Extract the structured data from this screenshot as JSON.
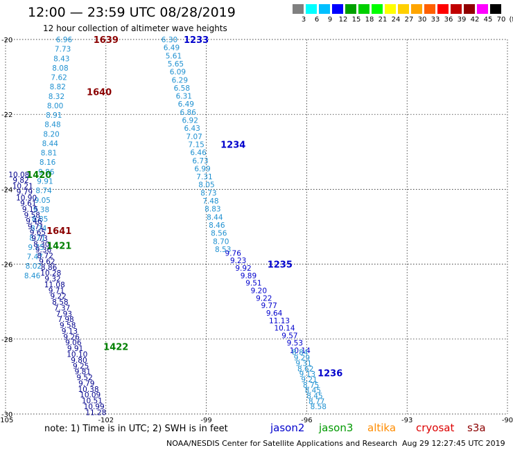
{
  "header": {
    "title": "12:00 — 23:59 UTC 08/28/2019",
    "subtitle": "12 hour collection of altimeter wave heights"
  },
  "color_scale": {
    "labels": [
      "3",
      "6",
      "9",
      "12",
      "15",
      "18",
      "21",
      "24",
      "27",
      "30",
      "33",
      "36",
      "39",
      "42",
      "45",
      "70",
      "(ft)"
    ],
    "colors": [
      "#808080",
      "#00ffff",
      "#00bfff",
      "#0000ff",
      "#00a000",
      "#00d000",
      "#00ff00",
      "#ffff00",
      "#ffd000",
      "#ffa500",
      "#ff6000",
      "#ff0000",
      "#c00000",
      "#900000",
      "#ff00ff",
      "#000000"
    ]
  },
  "footer": {
    "note": "note:  1) Time is in UTC;  2) SWH is in feet",
    "satellites": [
      {
        "name": "jason2",
        "color": "#0000cc"
      },
      {
        "name": "jason3",
        "color": "#009900"
      },
      {
        "name": "altika",
        "color": "#ff8c00"
      },
      {
        "name": "cryosat",
        "color": "#dd0000"
      },
      {
        "name": "s3a",
        "color": "#8b0000"
      }
    ],
    "credit": "NOAA/NESDIS Center for Satellite Applications and Research",
    "timestamp": "Aug 29 12:27:45 UTC 2019"
  },
  "chart_data": {
    "type": "scatter",
    "xlim": [
      -105,
      -90
    ],
    "ylim": [
      -30,
      -20
    ],
    "x_ticks": [
      "-105",
      "-102",
      "-99",
      "-96",
      "-93",
      "-90"
    ],
    "y_ticks": [
      "-20",
      "-22",
      "-24",
      "-26",
      "-28",
      "-30"
    ],
    "grid": true,
    "tracks": [
      {
        "id": "t1",
        "color": "#1e90d0",
        "start": [
          -103.25,
          -20.0
        ],
        "end": [
          -104.2,
          -26.3
        ],
        "values": [
          "6.96",
          "7.73",
          "8.43",
          "8.08",
          "7.62",
          "8.82",
          "8.32",
          "8.00",
          "8.91",
          "8.48",
          "8.20",
          "8.44",
          "8.81",
          "8.16",
          "9.86",
          "9.91",
          "8.74",
          "9.05",
          "9.38",
          "8.85",
          "8.74",
          "8.71",
          "9.75",
          "7.47",
          "8.02",
          "8.46"
        ]
      },
      {
        "id": "t2",
        "color": "#00008b",
        "start": [
          -104.6,
          -23.6
        ],
        "end": [
          -102.3,
          -29.95
        ],
        "values": [
          "10.08",
          "9.82",
          "10.21",
          "9.79",
          "10.90",
          "9.61",
          "9.15",
          "9.58",
          "9.46",
          "9.71",
          "9.65",
          "9.73",
          "8.30",
          "9.36",
          "8.72",
          "9.62",
          "8.86",
          "10.28",
          "9.32",
          "11.08",
          "9.71",
          "9.22",
          "8.58",
          "7.37",
          "7.93",
          "7.98",
          "9.58",
          "9.13",
          "9.26",
          "9.06",
          "9.91",
          "10.10",
          "9.80",
          "9.25",
          "9.81",
          "9.52",
          "9.79",
          "10.38",
          "10.09",
          "10.51",
          "10.99",
          "11.28"
        ]
      },
      {
        "id": "t3",
        "color": "#1e90d0",
        "start": [
          -100.1,
          -20.0
        ],
        "end": [
          -98.5,
          -25.6
        ],
        "values": [
          "6.30",
          "6.49",
          "5.61",
          "5.65",
          "6.09",
          "6.29",
          "6.58",
          "6.31",
          "6.49",
          "6.86",
          "6.92",
          "6.43",
          "7.07",
          "7.15",
          "6.46",
          "6.73",
          "6.99",
          "7.31",
          "8.05",
          "8.73",
          "7.48",
          "8.83",
          "8.44",
          "8.46",
          "8.56",
          "8.70",
          "8.53"
        ]
      },
      {
        "id": "t4",
        "color": "#0000cc",
        "start": [
          -98.2,
          -25.7
        ],
        "end": [
          -96.2,
          -28.3
        ],
        "values": [
          "9.76",
          "9.23",
          "9.92",
          "9.89",
          "9.51",
          "9.20",
          "9.22",
          "9.77",
          "9.64",
          "11.13",
          "10.14",
          "9.57",
          "9.53",
          "10.14"
        ]
      },
      {
        "id": "t5",
        "color": "#1e90d0",
        "start": [
          -96.2,
          -28.35
        ],
        "end": [
          -95.65,
          -29.8
        ],
        "values": [
          "8.84",
          "9.29",
          "9.31",
          "8.62",
          "9.13",
          "9.21",
          "8.75",
          "8.45",
          "8.45",
          "8.77",
          "8.58"
        ]
      }
    ],
    "annotations": [
      {
        "text": "1639",
        "x": -102.0,
        "y": -20.0,
        "color": "#8b0000"
      },
      {
        "text": "1233",
        "x": -99.3,
        "y": -20.0,
        "color": "#0000cc"
      },
      {
        "text": "1640",
        "x": -102.2,
        "y": -21.4,
        "color": "#8b0000"
      },
      {
        "text": "1234",
        "x": -98.2,
        "y": -22.8,
        "color": "#0000cc"
      },
      {
        "text": "1420",
        "x": -104.0,
        "y": -23.6,
        "color": "#008000"
      },
      {
        "text": "1641",
        "x": -103.4,
        "y": -25.1,
        "color": "#8b0000"
      },
      {
        "text": "1421",
        "x": -103.4,
        "y": -25.5,
        "color": "#008000"
      },
      {
        "text": "1235",
        "x": -96.8,
        "y": -26.0,
        "color": "#0000cc"
      },
      {
        "text": "1422",
        "x": -101.7,
        "y": -28.2,
        "color": "#008000"
      },
      {
        "text": "1236",
        "x": -95.3,
        "y": -28.9,
        "color": "#0000cc"
      }
    ]
  }
}
